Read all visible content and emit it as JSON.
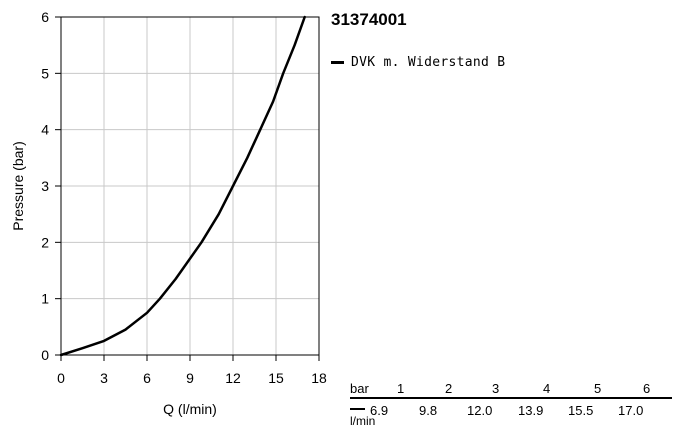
{
  "chart_data": {
    "type": "line",
    "title": "31374001",
    "xlabel": "Q (l/min)",
    "ylabel": "Pressure (bar)",
    "xlim": [
      0,
      18
    ],
    "ylim": [
      0,
      6
    ],
    "xticks": [
      0,
      3,
      6,
      9,
      12,
      15,
      18
    ],
    "yticks": [
      0,
      1,
      2,
      3,
      4,
      5,
      6
    ],
    "grid": true,
    "legend_position": "right",
    "series": [
      {
        "name": "DVK m. Widerstand B",
        "color": "#000000",
        "x": [
          0,
          1.5,
          3.0,
          4.5,
          6.0,
          6.9,
          8.0,
          9.8,
          11.0,
          12.0,
          13.0,
          13.9,
          14.8,
          15.5,
          16.3,
          17.0
        ],
        "y": [
          0,
          0.12,
          0.25,
          0.45,
          0.75,
          1.0,
          1.35,
          2.0,
          2.5,
          3.0,
          3.5,
          4.0,
          4.5,
          5.0,
          5.5,
          6.0
        ]
      }
    ]
  },
  "table": {
    "header_label": "bar",
    "unit_label": "l/min",
    "pressures": [
      "1",
      "2",
      "3",
      "4",
      "5",
      "6"
    ],
    "flows": [
      "6.9",
      "9.8",
      "12.0",
      "13.9",
      "15.5",
      "17.0"
    ]
  }
}
